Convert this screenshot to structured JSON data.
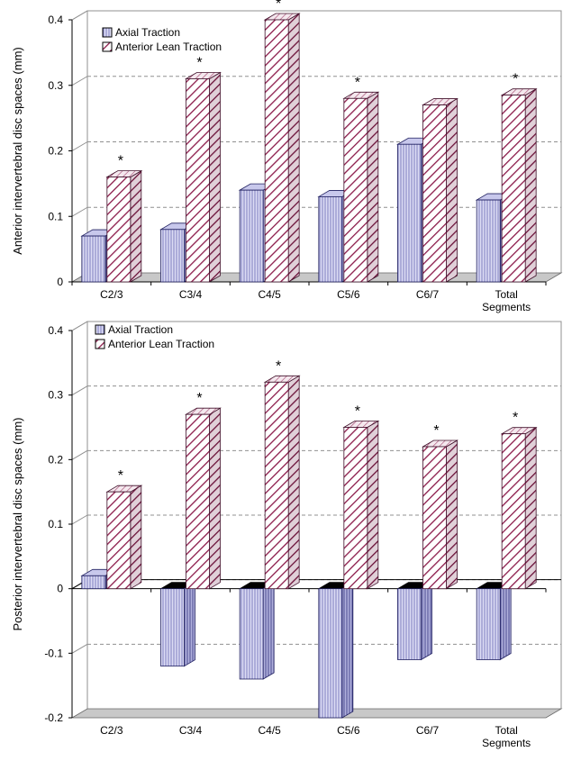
{
  "chart_data": [
    {
      "type": "bar",
      "ylabel": "Anterior intervertebral disc spaces (mm)",
      "categories": [
        "C2/3",
        "C3/4",
        "C4/5",
        "C5/6",
        "C6/7",
        "Total Segments"
      ],
      "ylim": [
        0,
        0.4
      ],
      "yticks": [
        "0",
        "0.1",
        "0.2",
        "0.3",
        "0.4"
      ],
      "grid": true,
      "legend_position": "top-left",
      "series": [
        {
          "name": "Axial Traction",
          "values": [
            0.07,
            0.08,
            0.14,
            0.13,
            0.21,
            0.125
          ]
        },
        {
          "name": "Anterior Lean Traction",
          "values": [
            0.16,
            0.31,
            0.4,
            0.28,
            0.27,
            0.285
          ]
        }
      ],
      "annotations": [
        {
          "category": "C2/3",
          "text": "*"
        },
        {
          "category": "C3/4",
          "text": "*"
        },
        {
          "category": "C4/5",
          "text": "*"
        },
        {
          "category": "C5/6",
          "text": "*"
        },
        {
          "category": "Total Segments",
          "text": "*"
        }
      ]
    },
    {
      "type": "bar",
      "ylabel": "Posterior intervertebral disc spaces (mm)",
      "categories": [
        "C2/3",
        "C3/4",
        "C4/5",
        "C5/6",
        "C6/7",
        "Total Segments"
      ],
      "ylim": [
        -0.2,
        0.4
      ],
      "yticks": [
        "-0.2",
        "-0.1",
        "0",
        "0.1",
        "0.2",
        "0.3",
        "0.4"
      ],
      "grid": true,
      "legend_position": "top-left",
      "series": [
        {
          "name": "Axial Traction",
          "values": [
            0.02,
            -0.12,
            -0.14,
            -0.2,
            -0.11,
            -0.11
          ]
        },
        {
          "name": "Anterior Lean Traction",
          "values": [
            0.15,
            0.27,
            0.32,
            0.25,
            0.22,
            0.24
          ]
        }
      ],
      "annotations": [
        {
          "category": "C2/3",
          "text": "*"
        },
        {
          "category": "C3/4",
          "text": "*"
        },
        {
          "category": "C4/5",
          "text": "*"
        },
        {
          "category": "C5/6",
          "text": "*"
        },
        {
          "category": "C6/7",
          "text": "*"
        },
        {
          "category": "Total Segments",
          "text": "*"
        }
      ]
    }
  ],
  "colors": {
    "axial_fill": "#dcdcf4",
    "axial_stripe": "#8080c0",
    "axial_edge": "#202060",
    "lean_fill": "#ffffff",
    "lean_stripe": "#8b1a4a",
    "lean_edge": "#40102a",
    "floor": "#c8c8c8",
    "grid": "#909090"
  }
}
